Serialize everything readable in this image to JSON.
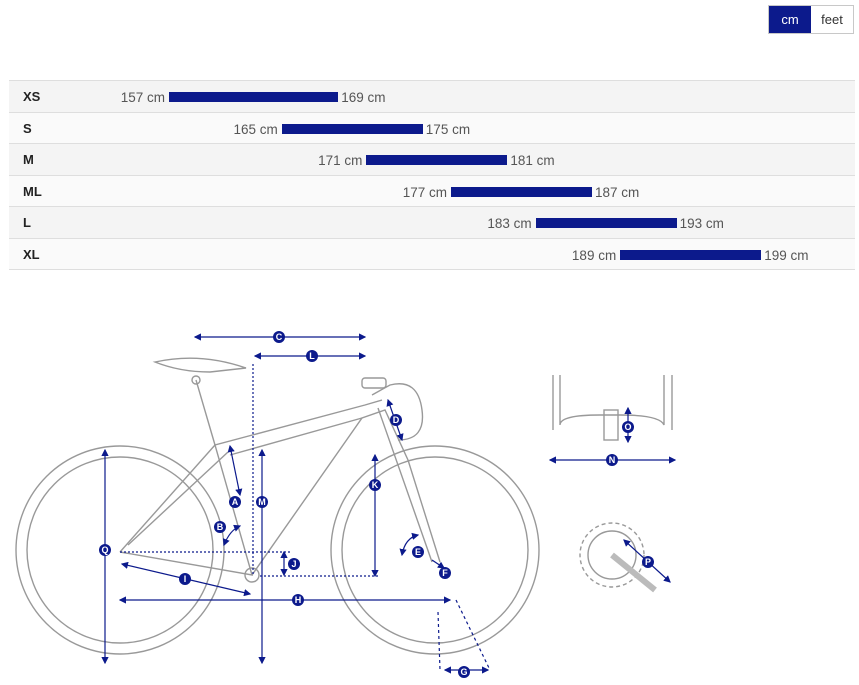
{
  "unit_toggle": {
    "cm": "cm",
    "feet": "feet",
    "selected": "cm"
  },
  "colors": {
    "accent": "#0c1a8c"
  },
  "size_chart": {
    "scale": {
      "min": 150,
      "max": 205
    },
    "rows": [
      {
        "size": "XS",
        "min": 157,
        "max": 169,
        "min_label": "157 cm",
        "max_label": "169 cm"
      },
      {
        "size": "S",
        "min": 165,
        "max": 175,
        "min_label": "165 cm",
        "max_label": "175 cm"
      },
      {
        "size": "M",
        "min": 171,
        "max": 181,
        "min_label": "171 cm",
        "max_label": "181 cm"
      },
      {
        "size": "ML",
        "min": 177,
        "max": 187,
        "min_label": "177 cm",
        "max_label": "187 cm"
      },
      {
        "size": "L",
        "min": 183,
        "max": 193,
        "min_label": "183 cm",
        "max_label": "193 cm"
      },
      {
        "size": "XL",
        "min": 189,
        "max": 199,
        "min_label": "189 cm",
        "max_label": "199 cm"
      }
    ]
  },
  "geometry_markers": {
    "A": "A",
    "B": "B",
    "C": "C",
    "D": "D",
    "E": "E",
    "F": "F",
    "G": "G",
    "H": "H",
    "I": "I",
    "J": "J",
    "K": "K",
    "L": "L",
    "M": "M",
    "N": "N",
    "O": "O",
    "P": "P",
    "Q": "Q"
  }
}
